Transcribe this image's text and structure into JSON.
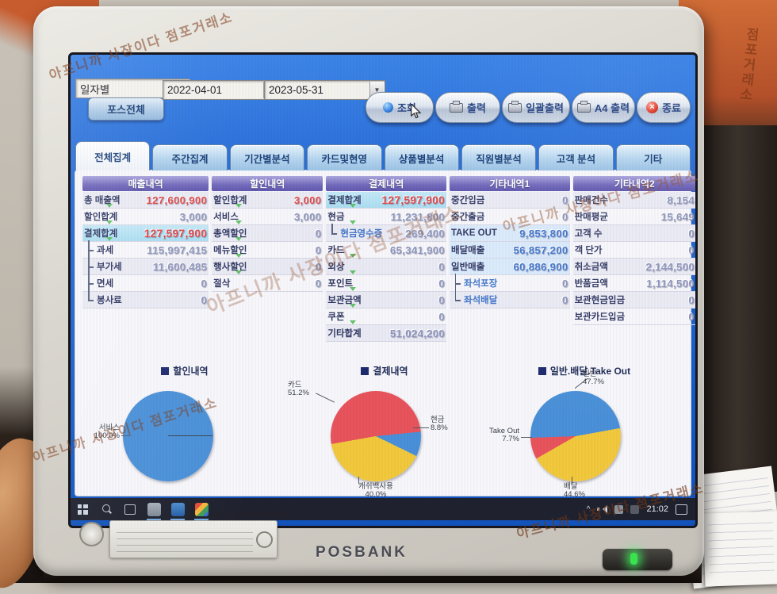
{
  "watermark": {
    "text": "아프니까 사장이다 점포거래소",
    "vertical_text": "점포거래소"
  },
  "monitor": {
    "brand": "POSBANK"
  },
  "toolbar": {
    "filter_type": "일자별",
    "pos_button": "포스전체",
    "date_from": "2022-04-01",
    "date_to": "2023-05-31",
    "buttons": [
      {
        "label": "조회",
        "icon": "blue-orb"
      },
      {
        "label": "출력",
        "icon": "printer"
      },
      {
        "label": "일괄출력",
        "icon": "printer"
      },
      {
        "label": "A4 출력",
        "icon": "printer"
      },
      {
        "label": "종료",
        "icon": "close-red"
      }
    ]
  },
  "tabs": {
    "active_index": 0,
    "items": [
      "전체집계",
      "주간집계",
      "기간별분석",
      "카드및현영",
      "상품별분석",
      "직원별분석",
      "고객 분석",
      "기타"
    ]
  },
  "table": {
    "columns": [
      {
        "header": "매출내역",
        "rows": [
          {
            "label": "총 매출액",
            "value": "127,600,900",
            "style": "red"
          },
          {
            "label": "할인합계",
            "value": "3,000"
          },
          {
            "label": "결제합계",
            "value": "127,597,900",
            "style": "hlred"
          },
          {
            "label": "과세",
            "value": "115,997,415",
            "tree": "mid"
          },
          {
            "label": "부가세",
            "value": "11,600,485",
            "tree": "mid"
          },
          {
            "label": "면세",
            "value": "0",
            "tree": "mid"
          },
          {
            "label": "봉사료",
            "value": "0",
            "tree": "last"
          }
        ]
      },
      {
        "header": "할인내역",
        "rows": [
          {
            "label": "할인합계",
            "value": "3,000",
            "style": "red"
          },
          {
            "label": "서비스",
            "value": "3,000"
          },
          {
            "label": "총액할인",
            "value": "0"
          },
          {
            "label": "메뉴할인",
            "value": "0"
          },
          {
            "label": "행사할인",
            "value": "0"
          },
          {
            "label": "절삭",
            "value": "0"
          }
        ]
      },
      {
        "header": "결제내역",
        "rows": [
          {
            "label": "결제합계",
            "value": "127,597,900",
            "style": "hlred"
          },
          {
            "label": "현금",
            "value": "11,231,800"
          },
          {
            "label": "현금영수증",
            "value": "269,400",
            "tree": "last",
            "sub": true
          },
          {
            "label": "카드",
            "value": "65,341,900"
          },
          {
            "label": "외상",
            "value": "0"
          },
          {
            "label": "포인트",
            "value": "0"
          },
          {
            "label": "보관금액",
            "value": "0"
          },
          {
            "label": "쿠폰",
            "value": "0"
          },
          {
            "label": "기타합계",
            "value": "51,024,200"
          }
        ]
      },
      {
        "header": "기타내역1",
        "rows": [
          {
            "label": "중간입금",
            "value": "0"
          },
          {
            "label": "중간출금",
            "value": "0"
          },
          {
            "label": "TAKE OUT",
            "value": "9,853,800",
            "style": "bluehl"
          },
          {
            "label": "배달매출",
            "value": "56,857,200",
            "style": "bluehl"
          },
          {
            "label": "일반매출",
            "value": "60,886,900",
            "style": "bluehl"
          },
          {
            "label": "좌석포장",
            "value": "0",
            "tree": "mid",
            "sub": true
          },
          {
            "label": "좌석배달",
            "value": "0",
            "tree": "last",
            "sub": true
          }
        ]
      },
      {
        "header": "기타내역2",
        "rows": [
          {
            "label": "판매건수",
            "value": "8,154"
          },
          {
            "label": "판매평균",
            "value": "15,649"
          },
          {
            "label": "고객 수",
            "value": "0"
          },
          {
            "label": "객 단가",
            "value": "0"
          },
          {
            "label": "취소금액",
            "value": "2,144,500"
          },
          {
            "label": "반품금액",
            "value": "1,114,500"
          },
          {
            "label": "보관현금입금",
            "value": "0"
          },
          {
            "label": "보관카드입금",
            "value": "0"
          }
        ]
      }
    ]
  },
  "chart_data": [
    {
      "type": "pie",
      "title": "할인내역",
      "start_deg": 90,
      "slices": [
        {
          "label": "서비스",
          "pct": 100.0,
          "color": "#4a90d8"
        }
      ]
    },
    {
      "type": "pie",
      "title": "결제내역",
      "start_deg": -100,
      "slices": [
        {
          "label": "카드",
          "pct": 51.2,
          "color": "#e8545c"
        },
        {
          "label": "현금",
          "pct": 8.8,
          "color": "#4a90d8"
        },
        {
          "label": "캐쉬백사용",
          "pct": 40.0,
          "color": "#f2c83c"
        }
      ]
    },
    {
      "type": "pie",
      "title": "일반.배달.Take Out",
      "start_deg": 268,
      "slices": [
        {
          "label": "일반",
          "pct": 47.7,
          "color": "#4a90d8"
        },
        {
          "label": "배달",
          "pct": 44.6,
          "color": "#f2c83c"
        },
        {
          "label": "Take Out",
          "pct": 7.7,
          "color": "#e8545c"
        }
      ]
    }
  ],
  "taskbar": {
    "time": "21:02"
  }
}
